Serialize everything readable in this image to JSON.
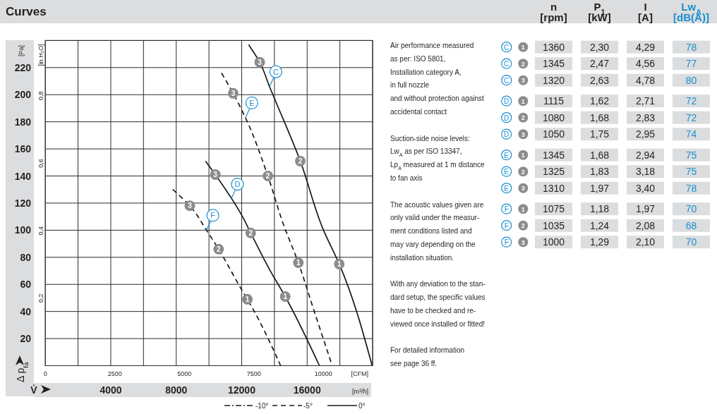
{
  "chart_data": [
    {
      "type": "line",
      "title": "Curves",
      "xlabel": "V̇",
      "ylabel": "Δ p$_{fa}$",
      "x2label": "[CFM]",
      "y2label": "[in H₂O]",
      "xlim": [
        0,
        20000
      ],
      "xticks": [
        {
          "value": 0,
          "label": null
        },
        {
          "value": 2000,
          "label": null
        },
        4000,
        {
          "value": 6000,
          "label": null
        },
        8000,
        {
          "value": 10000,
          "label": null
        },
        12000,
        {
          "value": 14000,
          "label": null
        },
        16000,
        {
          "value": 18000,
          "label": null
        },
        {
          "value": 20000,
          "label": null
        }
      ],
      "ylim": [
        0,
        240
      ],
      "yticks": [
        {
          "value": 0,
          "label": null
        },
        20,
        40,
        60,
        80,
        100,
        120,
        140,
        160,
        180,
        200,
        220,
        {
          "value": 240,
          "label": null
        }
      ],
      "x2lim": [
        0,
        11772
      ],
      "x2ticks": [
        0,
        2500,
        5000,
        7500,
        10000
      ],
      "y2lim": [
        0,
        0.964
      ],
      "y2ticks": [
        {
          "value": 0.2,
          "label": "0,2"
        },
        {
          "value": 0.4,
          "label": "0,4"
        },
        {
          "value": 0.6,
          "label": "0,6"
        },
        {
          "value": 0.8,
          "label": "0,8"
        }
      ],
      "grid": true,
      "series": [
        {
          "name": "C",
          "color": "#1a1a1a",
          "line_style": "solid",
          "x": [
            12420,
            13100,
            13700,
            15580,
            17000,
            17960,
            19970
          ],
          "values": [
            237,
            224,
            206,
            151,
            100,
            75,
            0
          ]
        },
        {
          "name": "D",
          "color": "#1a1a1a",
          "line_style": "solid",
          "x": [
            9790,
            10390,
            12050,
            12550,
            13700,
            14660,
            16750
          ],
          "values": [
            151,
            141,
            110,
            98,
            71,
            51,
            0
          ]
        },
        {
          "name": "E",
          "color": "#1a1a1a",
          "line_style": "dashed",
          "x": [
            10770,
            11480,
            12270,
            13600,
            14530,
            15460,
            16410,
            17530
          ],
          "values": [
            216,
            201,
            182,
            140,
            105,
            76,
            41,
            0
          ]
        },
        {
          "name": "F",
          "color": "#1a1a1a",
          "line_style": "dashed",
          "x": [
            7790,
            8830,
            9850,
            10590,
            12050,
            12350,
            14380
          ],
          "values": [
            130,
            118,
            100,
            86,
            55,
            49,
            0
          ]
        }
      ],
      "annotations": [
        "[Pa]",
        "[m³/h]",
        "-10°",
        "-5°",
        "0°",
        {
          "text": "3",
          "x": 13100,
          "y": 224
        },
        {
          "text": "2",
          "x": 15580,
          "y": 151
        },
        {
          "text": "1",
          "x": 17960,
          "y": 75
        },
        {
          "text": "3",
          "x": 10390,
          "y": 141
        },
        {
          "text": "2",
          "x": 12550,
          "y": 98
        },
        {
          "text": "1",
          "x": 14660,
          "y": 51
        },
        {
          "text": "3",
          "x": 11480,
          "y": 201
        },
        {
          "text": "2",
          "x": 13600,
          "y": 140
        },
        {
          "text": "1",
          "x": 15460,
          "y": 76
        },
        {
          "text": "3",
          "x": 8830,
          "y": 118
        },
        {
          "text": "2",
          "x": 10590,
          "y": 86
        },
        {
          "text": "1",
          "x": 12350,
          "y": 49
        }
      ]
    },
    {
      "type": "other",
      "categories": [
        "n\n[rpm]",
        "P$_{1}$\n[kW]",
        "I\n[A]",
        "Lw$_{A}$\n[dB(A)]"
      ],
      "colors": [
        "#231f20",
        "#231f20",
        "#231f20",
        "#1a8fd0"
      ],
      "y_categories": [
        "C",
        "C",
        "C",
        "D",
        "D",
        "D",
        "E",
        "E",
        "E",
        "F",
        "F",
        "F"
      ],
      "y2_categories": [
        "1",
        "2",
        "3",
        "1",
        "2",
        "3",
        "1",
        "2",
        "3",
        "1",
        "2",
        "3"
      ],
      "cell_labels": [
        [
          "1360",
          "2,30",
          "4,29",
          "78"
        ],
        [
          "1345",
          "2,47",
          "4,56",
          "77"
        ],
        [
          "1320",
          "2,63",
          "4,78",
          "80"
        ],
        [
          "1115",
          "1,62",
          "2,71",
          "72"
        ],
        [
          "1080",
          "1,68",
          "2,83",
          "72"
        ],
        [
          "1050",
          "1,75",
          "2,95",
          "74"
        ],
        [
          "1345",
          "1,68",
          "2,94",
          "75"
        ],
        [
          "1325",
          "1,83",
          "3,18",
          "75"
        ],
        [
          "1310",
          "1,97",
          "3,40",
          "78"
        ],
        [
          "1075",
          "1,18",
          "1,97",
          "70"
        ],
        [
          "1035",
          "1,24",
          "2,08",
          "68"
        ],
        [
          "1000",
          "1,29",
          "2,10",
          "70"
        ]
      ],
      "annotations": [
        "Air performance measured\nas per: ISO 5801,\nInstallation category A,\nin full nozzle\nand without protection against\naccidental contact",
        "Suction-side noise levels:\nLw$_{A}$ as per ISO 13347,\nLp$_{A}$ measured at 1 m distance\nto fan axis",
        "The acoustic values given are\nonly valid under the measur-\nment conditions listed and\nmay vary depending on the\ninstallation situation.",
        "With any deviation to the stan-\ndard setup, the specific values\nhave to be checked and re-\nviewed once installed or fitted!",
        "For detailed information\nsee page 36 ff."
      ]
    }
  ]
}
